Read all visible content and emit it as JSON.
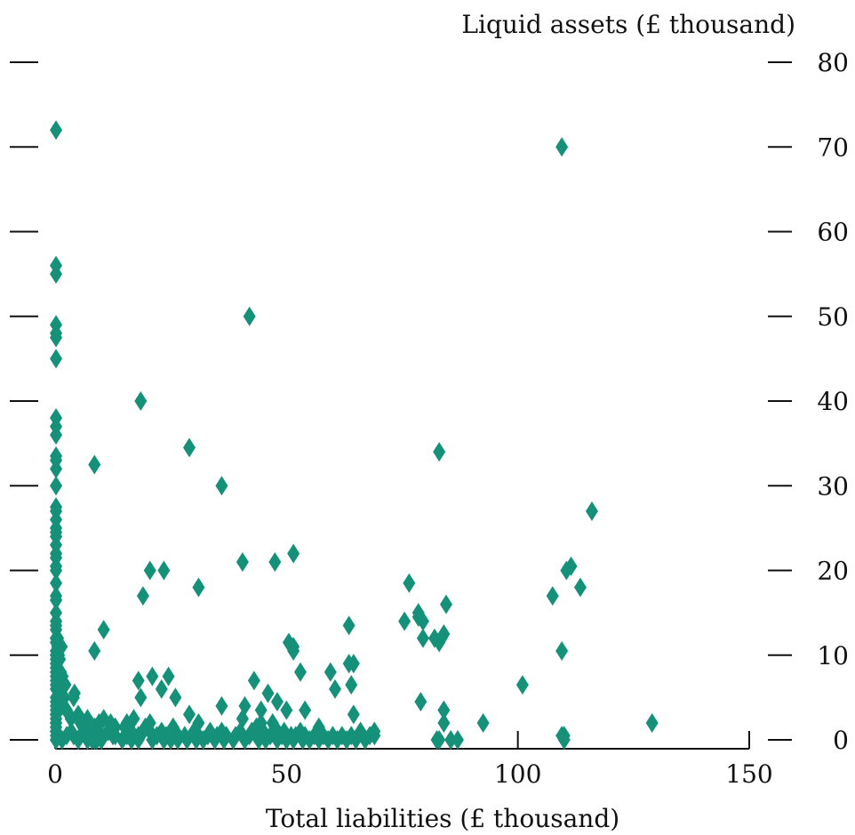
{
  "chart_data": {
    "type": "scatter",
    "xlabel": "Total liabilities (£ thousand)",
    "ylabel": "Liquid assets (£ thousand)",
    "xlim": [
      0,
      150
    ],
    "ylim": [
      0,
      80
    ],
    "x_ticks": [
      "0",
      "50",
      "100",
      "150"
    ],
    "y_ticks": [
      "0",
      "10",
      "20",
      "30",
      "40",
      "50",
      "60",
      "70",
      "80"
    ],
    "y_axis_position": "right",
    "grid": false,
    "legend": "none",
    "marker": "diamond",
    "color": "#149178",
    "x": [
      0.2,
      0.2,
      0.2,
      0.2,
      0.2,
      0.2,
      0.2,
      0.2,
      0.2,
      0.2,
      0.2,
      0.2,
      0.2,
      0.2,
      0.2,
      0.2,
      0.2,
      0.2,
      0.2,
      0.2,
      0.2,
      0.2,
      0.2,
      0.2,
      0.2,
      0.2,
      0.2,
      0.2,
      0.2,
      0.2,
      0.2,
      0.2,
      0.2,
      0.2,
      0.2,
      0.2,
      0.2,
      0.2,
      0.2,
      0.2,
      0.2,
      0.2,
      0.2,
      0.2,
      0.2,
      0.2,
      0.2,
      0.2,
      0.2,
      0.2,
      0.2,
      0.2,
      0.2,
      0.5,
      0.6,
      0.8,
      1.0,
      1.2,
      1.4,
      1.6,
      1.0,
      2.0,
      1.5,
      2.5,
      2.2,
      3.0,
      3.4,
      4.0,
      4.2,
      5.0,
      5.5,
      6.0,
      7.0,
      8.0,
      9.0,
      9.5,
      10.5,
      11.5,
      12.0,
      12.5,
      13.0,
      2.5,
      1.5,
      3.5,
      4.0,
      5.0,
      5.5,
      6.2,
      7.0,
      8.0,
      8.5,
      9.5,
      10.0,
      11.5,
      13.0,
      14.5,
      15.0,
      15.5,
      17.0,
      18.0,
      7.5,
      8.0,
      8.2,
      8.5,
      9.0,
      9.5,
      10.0,
      12.5,
      15.5,
      16.5,
      17.0,
      18.0,
      18.5,
      19.5,
      20.5,
      20.5,
      21.0,
      22.0,
      23.0,
      23.5,
      24.0,
      25.0,
      25.5,
      26.0,
      26.5,
      28.0,
      28.5,
      30.0,
      30.5,
      31.0,
      32.0,
      33.0,
      33.5,
      34.5,
      35.0,
      36.0,
      36.5,
      37.0,
      38.5,
      39.0,
      40.0,
      40.5,
      41.0,
      42.0,
      42.5,
      43.5,
      44.0,
      44.5,
      45.0,
      45.5,
      46.5,
      47.0,
      47.5,
      48.0,
      49.0,
      49.5,
      50.0,
      51.0,
      51.5,
      52.0,
      53.0,
      53.5,
      54.0,
      55.0,
      56.0,
      57.0,
      58.0,
      59.0,
      60.0,
      61.0,
      62.0,
      63.0,
      64.0,
      65.0,
      66.0,
      67.0,
      68.0,
      69.0,
      16.5,
      18.0,
      18.5,
      21.0,
      23.0,
      24.5,
      26.0,
      29.0,
      31.0,
      36.0,
      40.5,
      41.0,
      43.0,
      44.5,
      44.5,
      46.0,
      48.0,
      50.0,
      50.5,
      51.5,
      51.5,
      53.0,
      54.0,
      57.0,
      59.5,
      60.5,
      63.5,
      64.5,
      69.0,
      75.5,
      76.5,
      79.0,
      79.5,
      83.0,
      83.5,
      84.0,
      84.0,
      84.5,
      85.5,
      87.0,
      92.5,
      101.0,
      107.5,
      110.0,
      109.5,
      109.5,
      110.5,
      111.5,
      113.5,
      116.0,
      129.0,
      0.2,
      8.5,
      18.5,
      23.5,
      29.0,
      36.0,
      40.5,
      42.0,
      47.5,
      51.5,
      10.5,
      8.5,
      19.0,
      20.5,
      31.0,
      63.5,
      64.0,
      64.5,
      78.5,
      78.5,
      82.5,
      83.0,
      84.0,
      109.5,
      0.2,
      0.2,
      0.2,
      0.2,
      0.2,
      0.2,
      0.2,
      0.2,
      79.5,
      110.0,
      82.0,
      83.0
    ],
    "y": [
      72.0,
      56.0,
      55.0,
      49.0,
      48.0,
      47.5,
      45.0,
      38.0,
      37.0,
      36.0,
      33.5,
      33.0,
      32.0,
      30.0,
      27.5,
      27.0,
      26.0,
      25.0,
      24.5,
      24.0,
      23.0,
      22.0,
      21.5,
      20.5,
      20.0,
      18.5,
      17.0,
      16.5,
      15.0,
      14.0,
      13.0,
      12.0,
      11.5,
      10.5,
      10.0,
      9.5,
      9.0,
      8.0,
      7.5,
      7.0,
      6.5,
      6.0,
      5.0,
      4.5,
      4.0,
      3.5,
      3.0,
      2.5,
      2.0,
      1.5,
      1.0,
      0.5,
      0.0,
      11.0,
      12.0,
      10.0,
      9.5,
      8.0,
      11.0,
      7.5,
      6.0,
      5.0,
      4.0,
      3.5,
      6.5,
      3.0,
      2.5,
      5.0,
      5.5,
      3.0,
      2.0,
      1.5,
      2.5,
      1.0,
      1.5,
      2.0,
      2.5,
      1.0,
      2.0,
      0.5,
      1.5,
      0.5,
      0.0,
      1.0,
      0.5,
      0.0,
      0.5,
      1.0,
      0.0,
      0.5,
      0.0,
      0.5,
      0.0,
      1.0,
      0.5,
      0.0,
      1.5,
      2.0,
      2.5,
      0.5,
      1.0,
      0.0,
      0.5,
      1.5,
      0.0,
      1.0,
      0.0,
      1.0,
      0.5,
      0.0,
      0.5,
      0.0,
      0.5,
      1.5,
      2.0,
      1.0,
      0.0,
      0.5,
      1.0,
      0.0,
      0.5,
      0.0,
      1.5,
      1.0,
      0.0,
      0.5,
      0.0,
      1.0,
      0.0,
      0.5,
      0.0,
      0.5,
      1.0,
      0.0,
      0.5,
      1.0,
      0.0,
      0.5,
      0.0,
      0.5,
      1.0,
      2.5,
      0.0,
      0.5,
      1.0,
      1.5,
      0.0,
      0.5,
      1.0,
      0.0,
      0.5,
      2.0,
      1.5,
      0.0,
      0.5,
      1.0,
      0.0,
      0.5,
      0.0,
      0.5,
      1.0,
      0.0,
      0.5,
      0.0,
      0.5,
      0.0,
      0.5,
      0.0,
      0.5,
      0.0,
      0.5,
      0.0,
      0.5,
      0.0,
      1.0,
      0.0,
      0.5,
      0.5,
      1.0,
      7.0,
      5.0,
      7.5,
      6.0,
      7.5,
      5.0,
      3.0,
      2.0,
      4.0,
      2.5,
      4.0,
      7.0,
      3.5,
      2.0,
      5.5,
      4.5,
      3.5,
      11.5,
      11.0,
      10.5,
      8.0,
      3.5,
      1.5,
      8.0,
      6.0,
      9.0,
      3.0,
      1.0,
      14.0,
      18.5,
      4.5,
      14.0,
      34.0,
      12.0,
      12.5,
      3.5,
      16.0,
      0.0,
      0.0,
      2.0,
      6.5,
      17.0,
      0.5,
      0.5,
      10.5,
      20.0,
      20.5,
      18.0,
      27.0,
      2.0,
      0.0,
      32.5,
      40.0,
      20.0,
      34.5,
      30.0,
      21.0,
      50.0,
      21.0,
      22.0,
      13.0,
      10.5,
      17.0,
      20.0,
      18.0,
      13.5,
      6.5,
      9.0,
      14.5,
      15.0,
      0.0,
      11.5,
      2.0,
      70.0,
      16.5,
      13.5,
      12.0,
      10.0,
      8.5,
      3.0,
      2.0,
      1.0,
      12.0,
      0.0,
      12.0,
      0.0
    ]
  }
}
